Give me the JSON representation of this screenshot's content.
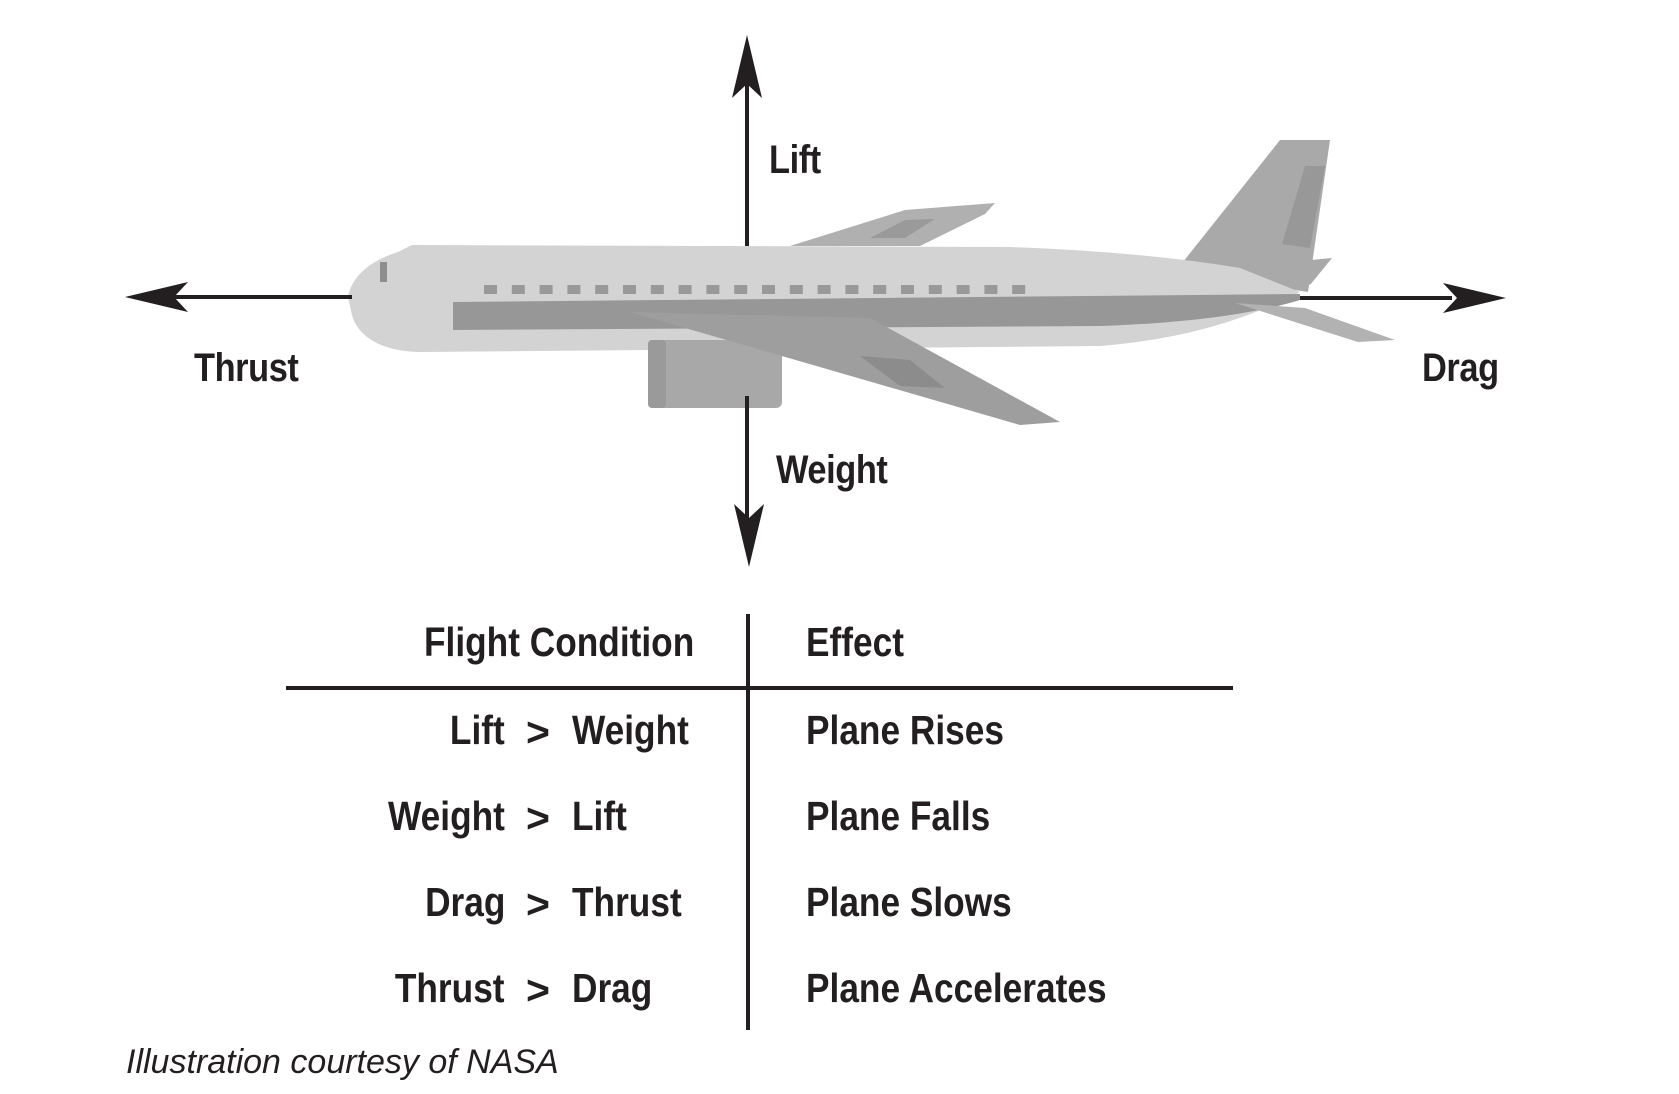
{
  "diagram": {
    "forces": {
      "lift": "Lift",
      "weight": "Weight",
      "thrust": "Thrust",
      "drag": "Drag"
    },
    "colors": {
      "ink": "#231f20",
      "fuselage": "#d4d4d4",
      "wing_dark": "#9c9c9c",
      "wing_mid": "#b3b3b3",
      "stripe": "#8f8f8f"
    }
  },
  "table": {
    "headers": {
      "condition": "Flight Condition",
      "effect": "Effect"
    },
    "rows": [
      {
        "left": "Lift",
        "op": ">",
        "right": "Weight",
        "effect": "Plane Rises"
      },
      {
        "left": "Weight",
        "op": ">",
        "right": "Lift",
        "effect": "Plane Falls"
      },
      {
        "left": "Drag",
        "op": ">",
        "right": "Thrust",
        "effect": "Plane Slows"
      },
      {
        "left": "Thrust",
        "op": ">",
        "right": "Drag",
        "effect": "Plane Accelerates"
      }
    ]
  },
  "caption": "Illustration courtesy of NASA"
}
